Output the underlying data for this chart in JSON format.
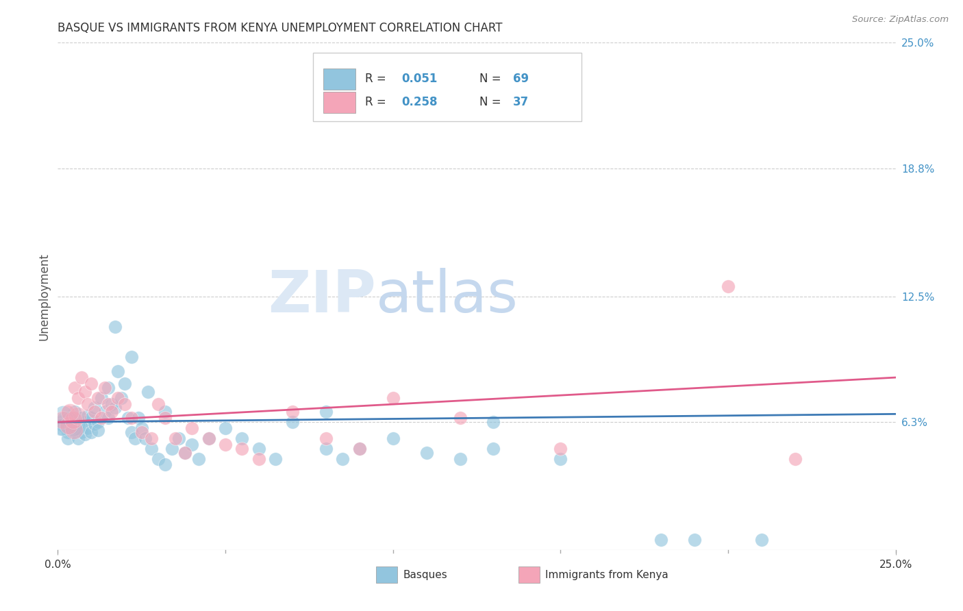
{
  "title": "BASQUE VS IMMIGRANTS FROM KENYA UNEMPLOYMENT CORRELATION CHART",
  "source": "Source: ZipAtlas.com",
  "ylabel": "Unemployment",
  "x_min": 0.0,
  "x_max": 0.25,
  "y_min": 0.0,
  "y_max": 0.25,
  "y_tick_labels_right": [
    "25.0%",
    "18.8%",
    "12.5%",
    "6.3%"
  ],
  "y_tick_values_right": [
    0.25,
    0.188,
    0.125,
    0.063
  ],
  "color_blue": "#92c5de",
  "color_pink": "#f4a5b8",
  "color_blue_text": "#4292c6",
  "color_line_blue": "#3d7ab5",
  "color_line_pink": "#e05a8a",
  "color_grid": "#cccccc",
  "watermark_color": "#dce8f5",
  "legend_label1": "Basques",
  "legend_label2": "Immigrants from Kenya",
  "blue_x": [
    0.002,
    0.003,
    0.003,
    0.004,
    0.004,
    0.005,
    0.005,
    0.005,
    0.006,
    0.006,
    0.007,
    0.007,
    0.007,
    0.008,
    0.008,
    0.009,
    0.009,
    0.01,
    0.01,
    0.011,
    0.011,
    0.012,
    0.012,
    0.013,
    0.014,
    0.015,
    0.015,
    0.016,
    0.017,
    0.018,
    0.019,
    0.02,
    0.021,
    0.022,
    0.023,
    0.024,
    0.025,
    0.026,
    0.028,
    0.03,
    0.032,
    0.034,
    0.036,
    0.038,
    0.04,
    0.042,
    0.045,
    0.05,
    0.055,
    0.06,
    0.065,
    0.07,
    0.08,
    0.085,
    0.09,
    0.1,
    0.11,
    0.12,
    0.13,
    0.15,
    0.017,
    0.022,
    0.027,
    0.032,
    0.08,
    0.13,
    0.18,
    0.19,
    0.21
  ],
  "blue_y": [
    0.063,
    0.058,
    0.055,
    0.06,
    0.065,
    0.063,
    0.058,
    0.068,
    0.055,
    0.062,
    0.06,
    0.065,
    0.058,
    0.063,
    0.057,
    0.06,
    0.066,
    0.058,
    0.065,
    0.062,
    0.07,
    0.063,
    0.059,
    0.075,
    0.068,
    0.065,
    0.08,
    0.072,
    0.07,
    0.088,
    0.075,
    0.082,
    0.065,
    0.058,
    0.055,
    0.065,
    0.06,
    0.055,
    0.05,
    0.045,
    0.042,
    0.05,
    0.055,
    0.048,
    0.052,
    0.045,
    0.055,
    0.06,
    0.055,
    0.05,
    0.045,
    0.063,
    0.05,
    0.045,
    0.05,
    0.055,
    0.048,
    0.045,
    0.05,
    0.045,
    0.11,
    0.095,
    0.078,
    0.068,
    0.068,
    0.063,
    0.005,
    0.005,
    0.005
  ],
  "pink_x": [
    0.002,
    0.003,
    0.004,
    0.005,
    0.006,
    0.007,
    0.008,
    0.009,
    0.01,
    0.011,
    0.012,
    0.013,
    0.014,
    0.015,
    0.016,
    0.018,
    0.02,
    0.022,
    0.025,
    0.028,
    0.03,
    0.032,
    0.035,
    0.038,
    0.04,
    0.045,
    0.05,
    0.055,
    0.06,
    0.07,
    0.08,
    0.09,
    0.1,
    0.12,
    0.15,
    0.2,
    0.22
  ],
  "pink_y": [
    0.063,
    0.068,
    0.065,
    0.08,
    0.075,
    0.085,
    0.078,
    0.072,
    0.082,
    0.068,
    0.075,
    0.065,
    0.08,
    0.072,
    0.068,
    0.075,
    0.072,
    0.065,
    0.058,
    0.055,
    0.072,
    0.065,
    0.055,
    0.048,
    0.06,
    0.055,
    0.052,
    0.05,
    0.045,
    0.068,
    0.055,
    0.05,
    0.075,
    0.065,
    0.05,
    0.13,
    0.045
  ]
}
